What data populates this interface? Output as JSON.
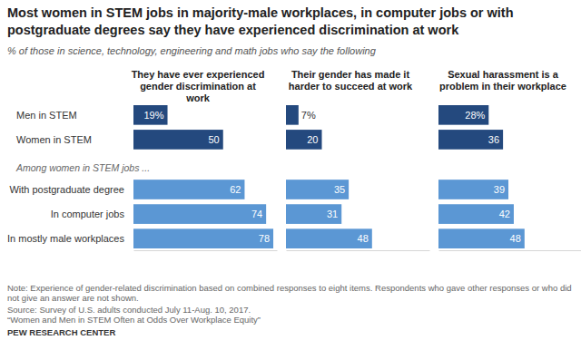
{
  "chart_data": {
    "type": "bar",
    "orientation": "horizontal",
    "title": "Most women in STEM jobs in majority-male workplaces, in computer jobs or with postgraduate degrees say they have experienced discrimination at work",
    "subtitle": "% of those in science, technology, engineering and math jobs who say the following",
    "annotations": [
      "Among women in STEM jobs ..."
    ],
    "categories": [
      "Men in STEM",
      "Women in STEM",
      "With postgraduate degree",
      "In computer jobs",
      "In mostly male workplaces"
    ],
    "series": [
      {
        "name": "They have ever experienced gender discrimination at work",
        "values": [
          19,
          50,
          62,
          74,
          78
        ],
        "value_labels": [
          "19%",
          "50",
          "62",
          "74",
          "78"
        ],
        "colors": [
          "#24497e",
          "#24497e",
          "#5b97d4",
          "#5b97d4",
          "#5b97d4"
        ]
      },
      {
        "name": "Their gender has made it harder to succeed at work",
        "values": [
          7,
          20,
          35,
          31,
          48
        ],
        "value_labels": [
          "7%",
          "20",
          "35",
          "31",
          "48"
        ],
        "colors": [
          "#24497e",
          "#24497e",
          "#5b97d4",
          "#5b97d4",
          "#5b97d4"
        ]
      },
      {
        "name": "Sexual harassment is a problem in their workplace",
        "values": [
          28,
          36,
          39,
          42,
          48
        ],
        "value_labels": [
          "28%",
          "36",
          "39",
          "42",
          "48"
        ],
        "colors": [
          "#24497e",
          "#24497e",
          "#5b97d4",
          "#5b97d4",
          "#5b97d4"
        ]
      }
    ],
    "xlim": [
      0,
      80
    ],
    "xticks": [],
    "tick_labels": false,
    "data_labels": true,
    "grid": false,
    "notes": [
      "Note: Experience of gender-related discrimination based on combined responses to eight items. Respondents who gave other responses or who did not give an answer are not shown.",
      "Source: Survey of U.S. adults conducted July 11-Aug. 10, 2017.",
      "“Women and Men in STEM Often at Odds Over Workplace Equity”"
    ],
    "credit": "PEW RESEARCH CENTER"
  }
}
